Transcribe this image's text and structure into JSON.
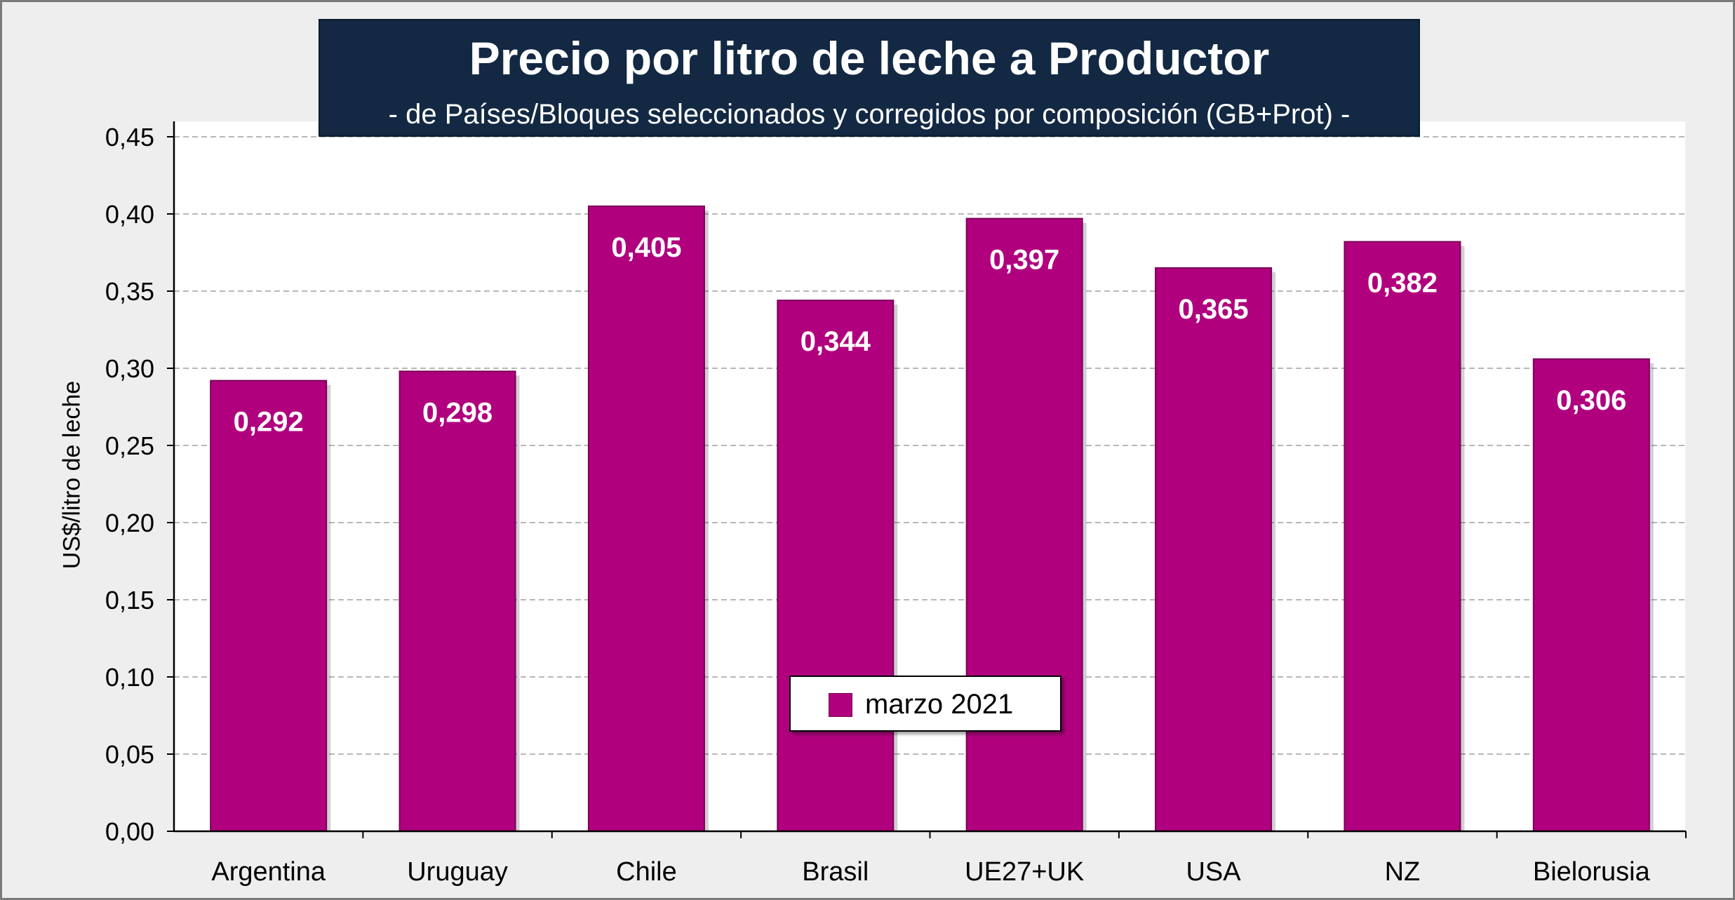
{
  "colors": {
    "bar": "#b0007e",
    "bar_edge": "#7a0058",
    "title_bg": "#122843",
    "frame_bg": "#eeeeee",
    "grid": "#b8b8b8"
  },
  "chart_data": {
    "type": "bar",
    "title": "Precio por litro de leche a Productor",
    "subtitle": "-  de Países/Bloques seleccionados y corregidos por composición (GB+Prot) -",
    "ylabel": "US$/litro de leche",
    "xlabel": "",
    "ylim": [
      0,
      0.45
    ],
    "grid": true,
    "legend_position": "bottom-center",
    "categories": [
      "Argentina",
      "Uruguay",
      "Chile",
      "Brasil",
      "UE27+UK",
      "USA",
      "NZ",
      "Bielorusia"
    ],
    "y_ticks": [
      "0,00",
      "0,05",
      "0,10",
      "0,15",
      "0,20",
      "0,25",
      "0,30",
      "0,35",
      "0,40",
      "0,45"
    ],
    "series": [
      {
        "name": "marzo 2021",
        "values": [
          0.292,
          0.298,
          0.405,
          0.344,
          0.397,
          0.365,
          0.382,
          0.306
        ],
        "labels": [
          "0,292",
          "0,298",
          "0,405",
          "0,344",
          "0,397",
          "0,365",
          "0,382",
          "0,306"
        ]
      }
    ]
  }
}
